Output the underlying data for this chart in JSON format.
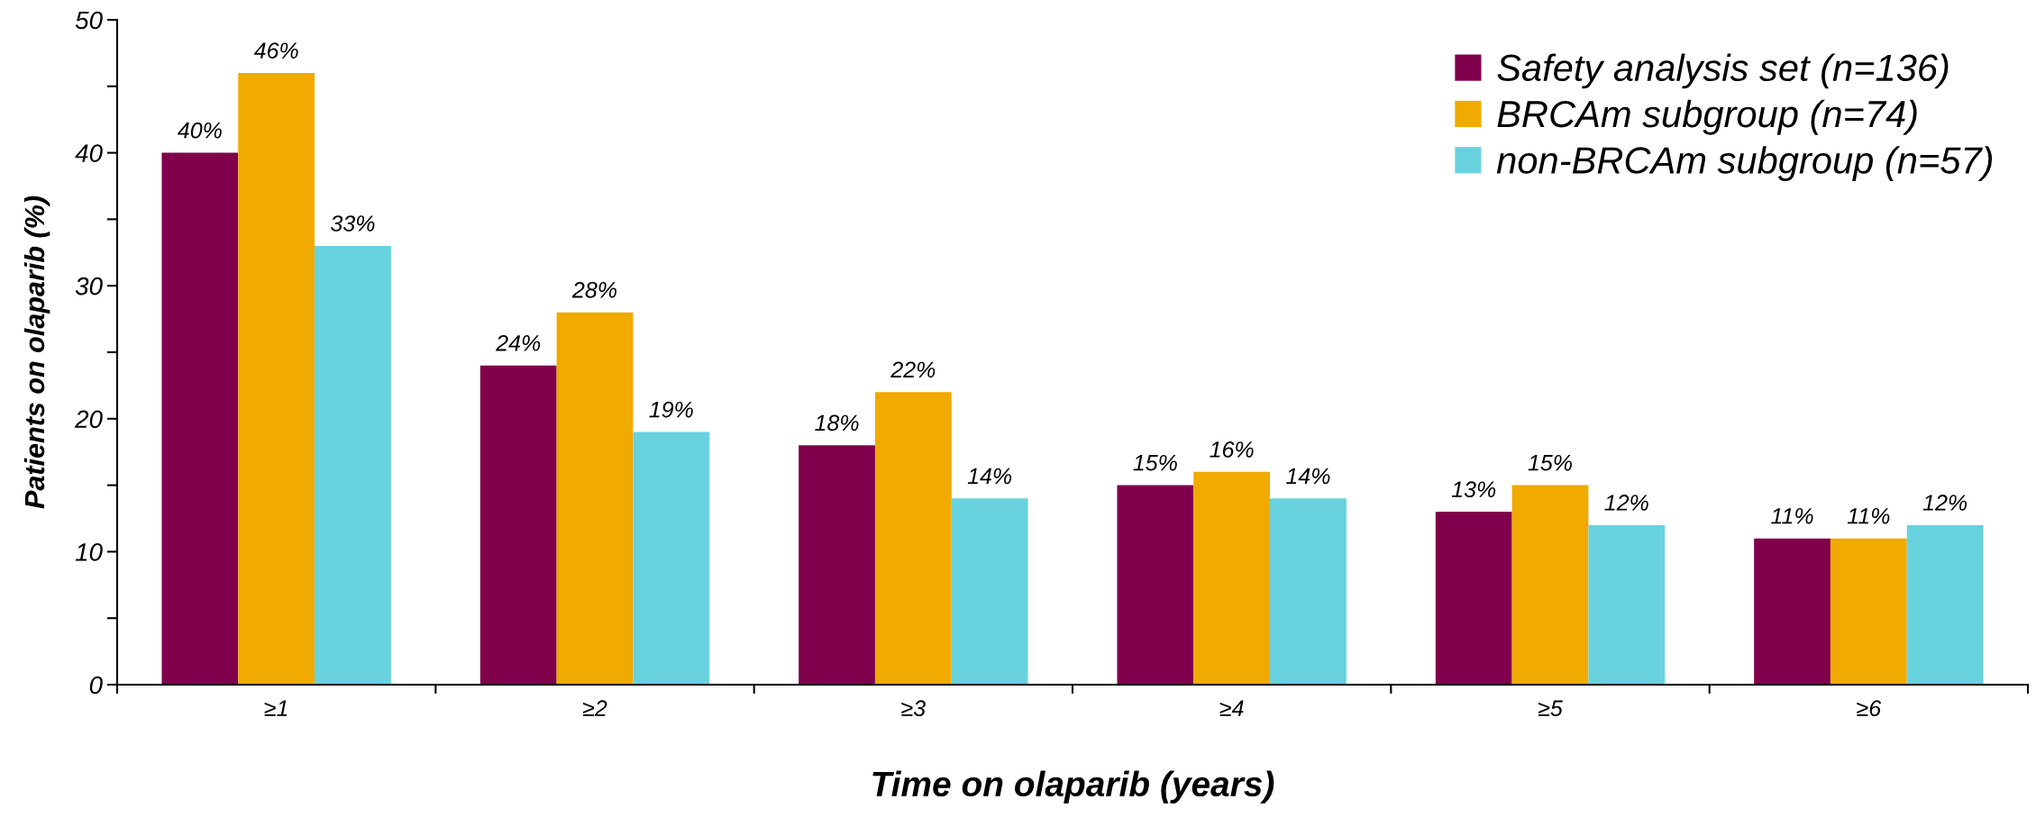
{
  "chart_data": {
    "type": "bar",
    "xlabel": "Time on olaparib (years)",
    "ylabel": "Patients on olaparib (%)",
    "categories": [
      "≥1",
      "≥2",
      "≥3",
      "≥4",
      "≥5",
      "≥6"
    ],
    "series": [
      {
        "name": "Safety analysis set (n=136)",
        "color": "#80004c",
        "values": [
          40,
          24,
          18,
          15,
          13,
          11
        ],
        "value_labels": [
          "40%",
          "24%",
          "18%",
          "15%",
          "13%",
          "11%"
        ]
      },
      {
        "name": "BRCAm subgroup (n=74)",
        "color": "#f0aa00",
        "values": [
          46,
          28,
          22,
          16,
          15,
          11
        ],
        "value_labels": [
          "46%",
          "28%",
          "22%",
          "16%",
          "15%",
          "11%"
        ]
      },
      {
        "name": "non-BRCAm subgroup (n=57)",
        "color": "#68d2df",
        "values": [
          33,
          19,
          14,
          14,
          12,
          12
        ],
        "value_labels": [
          "33%",
          "19%",
          "14%",
          "14%",
          "12%",
          "12%"
        ]
      }
    ],
    "ylim": [
      0,
      50
    ],
    "yticks": [
      0,
      {
        "value": 5,
        "label": null
      },
      10,
      {
        "value": 15,
        "label": null
      },
      20,
      {
        "value": 25,
        "label": null
      },
      30,
      {
        "value": 35,
        "label": null
      },
      40,
      {
        "value": 45,
        "label": null
      },
      50
    ],
    "grid": false,
    "legend": "top right"
  }
}
